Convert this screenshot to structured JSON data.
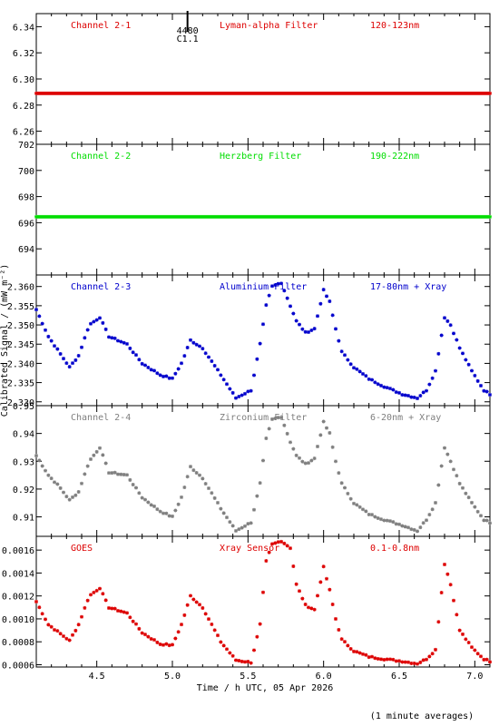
{
  "chart_data": {
    "type": "scatter",
    "xlabel": "Time / h UTC, 05 Apr 2026",
    "ylabel": "Calibrated Signal / (mW m⁻²)",
    "footnote": "(1 minute averages)",
    "xlim": [
      4.1,
      7.1
    ],
    "xticks": [
      "4.5",
      "5.0",
      "5.5",
      "6.0",
      "6.5",
      "7.0"
    ],
    "marker": {
      "x": 5.1,
      "labels": [
        "4480",
        "C1.1"
      ]
    },
    "panels": [
      {
        "name": "Channel 2-1",
        "filter": "Lyman-alpha Filter",
        "band": "120-123nm",
        "color": "#dd0000",
        "ylim": [
          6.25,
          6.35
        ],
        "yticks": [
          "6.26",
          "6.28",
          "6.30",
          "6.32",
          "6.34"
        ],
        "ytick_values": [
          6.26,
          6.28,
          6.3,
          6.32,
          6.34
        ],
        "x": [
          4.1,
          7.1
        ],
        "y": [
          6.289,
          6.289
        ]
      },
      {
        "name": "Channel 2-2",
        "filter": "Herzberg Filter",
        "band": "190-222nm",
        "color": "#00dd00",
        "ylim": [
          692.0,
          702.0
        ],
        "yticks": [
          "694",
          "696",
          "698",
          "700",
          "702"
        ],
        "ytick_values": [
          694,
          696,
          698,
          700,
          702
        ],
        "x": [
          4.1,
          7.1
        ],
        "y": [
          696.45,
          696.45
        ]
      },
      {
        "name": "Channel 2-3",
        "filter": "Aluminium Filter",
        "band": "17-80nm + Xray",
        "color": "#0000cc",
        "ylim": [
          2.329,
          2.363
        ],
        "yticks": [
          "2.330",
          "2.335",
          "2.340",
          "2.345",
          "2.350",
          "2.355",
          "2.360"
        ],
        "ytick_values": [
          2.33,
          2.335,
          2.34,
          2.345,
          2.35,
          2.355,
          2.36
        ],
        "x": [
          4.1,
          4.18,
          4.25,
          4.32,
          4.38,
          4.45,
          4.52,
          4.58,
          4.7,
          4.8,
          4.92,
          5.0,
          5.06,
          5.12,
          5.2,
          5.32,
          5.42,
          5.52,
          5.58,
          5.62,
          5.66,
          5.72,
          5.78,
          5.82,
          5.88,
          5.94,
          6.0,
          6.04,
          6.08,
          6.12,
          6.2,
          6.3,
          6.4,
          6.52,
          6.62,
          6.68,
          6.74,
          6.8,
          6.84,
          6.9,
          6.98,
          7.06,
          7.1
        ],
        "y": [
          2.354,
          2.347,
          2.343,
          2.339,
          2.342,
          2.35,
          2.352,
          2.347,
          2.345,
          2.34,
          2.337,
          2.336,
          2.34,
          2.346,
          2.344,
          2.337,
          2.331,
          2.333,
          2.345,
          2.355,
          2.36,
          2.361,
          2.355,
          2.351,
          2.348,
          2.349,
          2.359,
          2.356,
          2.349,
          2.343,
          2.339,
          2.336,
          2.334,
          2.332,
          2.331,
          2.333,
          2.338,
          2.352,
          2.35,
          2.344,
          2.338,
          2.333,
          2.332
        ]
      },
      {
        "name": "Channel 2-4",
        "filter": "Zirconium Filter",
        "band": "6-20nm + Xray",
        "color": "#7f7f7f",
        "ylim": [
          0.903,
          0.95
        ],
        "yticks": [
          "0.91",
          "0.92",
          "0.93",
          "0.94",
          "0.95"
        ],
        "ytick_values": [
          0.91,
          0.92,
          0.93,
          0.94,
          0.95
        ],
        "x": [
          4.1,
          4.18,
          4.25,
          4.32,
          4.38,
          4.45,
          4.52,
          4.58,
          4.7,
          4.8,
          4.92,
          5.0,
          5.06,
          5.12,
          5.2,
          5.32,
          5.42,
          5.52,
          5.58,
          5.62,
          5.66,
          5.72,
          5.78,
          5.82,
          5.88,
          5.94,
          6.0,
          6.04,
          6.08,
          6.12,
          6.2,
          6.3,
          6.4,
          6.52,
          6.62,
          6.68,
          6.74,
          6.8,
          6.84,
          6.9,
          6.98,
          7.06,
          7.1
        ],
        "y": [
          0.932,
          0.925,
          0.921,
          0.916,
          0.919,
          0.93,
          0.935,
          0.926,
          0.925,
          0.917,
          0.912,
          0.91,
          0.917,
          0.928,
          0.924,
          0.913,
          0.905,
          0.908,
          0.922,
          0.938,
          0.945,
          0.946,
          0.937,
          0.932,
          0.929,
          0.931,
          0.944,
          0.94,
          0.93,
          0.922,
          0.915,
          0.911,
          0.909,
          0.907,
          0.905,
          0.909,
          0.915,
          0.935,
          0.93,
          0.922,
          0.915,
          0.909,
          0.908
        ]
      },
      {
        "name": "GOES",
        "filter": "Xray Sensor",
        "band": "0.1-0.8nm",
        "color": "#dd0000",
        "ylim": [
          0.00058,
          0.00172
        ],
        "yticks": [
          "0.0006",
          "0.0008",
          "0.0010",
          "0.0012",
          "0.0014",
          "0.0016"
        ],
        "ytick_values": [
          0.0006,
          0.0008,
          0.001,
          0.0012,
          0.0014,
          0.0016
        ],
        "x": [
          4.1,
          4.18,
          4.25,
          4.32,
          4.38,
          4.45,
          4.52,
          4.58,
          4.7,
          4.8,
          4.92,
          5.0,
          5.06,
          5.12,
          5.2,
          5.32,
          5.42,
          5.52,
          5.58,
          5.62,
          5.66,
          5.72,
          5.78,
          5.82,
          5.88,
          5.94,
          6.0,
          6.04,
          6.08,
          6.12,
          6.2,
          6.3,
          6.4,
          6.52,
          6.62,
          6.68,
          6.74,
          6.8,
          6.84,
          6.9,
          6.98,
          7.06,
          7.1
        ],
        "y": [
          0.00115,
          0.00095,
          0.00088,
          0.00081,
          0.00095,
          0.0012,
          0.00127,
          0.0011,
          0.00105,
          0.00088,
          0.00078,
          0.00077,
          0.00095,
          0.0012,
          0.0011,
          0.0008,
          0.00064,
          0.00062,
          0.00095,
          0.0015,
          0.00165,
          0.00168,
          0.00162,
          0.0013,
          0.00112,
          0.00108,
          0.00145,
          0.00125,
          0.001,
          0.00082,
          0.00072,
          0.00067,
          0.00065,
          0.00063,
          0.00061,
          0.00065,
          0.00073,
          0.00148,
          0.0013,
          0.0009,
          0.00075,
          0.00065,
          0.00063
        ]
      }
    ]
  }
}
